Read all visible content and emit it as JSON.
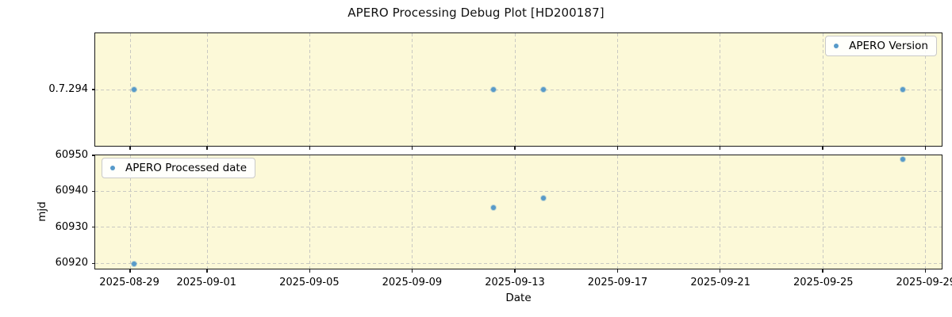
{
  "colors": {
    "plot_bg": "#fcf9d8",
    "marker": "#579ac9",
    "grid": "#c9c9c2",
    "axis": "#1a1a1a",
    "legend_bg": "rgba(255,255,255,0.88)",
    "legend_border": "#c9c9c9"
  },
  "chart_data": {
    "type": "scatter",
    "title": "APERO Processing Debug Plot [HD200187]",
    "grid": true,
    "marker": "dot",
    "x_axis": {
      "label": "Date",
      "min": "2025-08-27T15:20:00",
      "max": "2025-09-29T15:20:00",
      "ticks": [
        "2025-08-29",
        "2025-09-01",
        "2025-09-05",
        "2025-09-09",
        "2025-09-13",
        "2025-09-17",
        "2025-09-21",
        "2025-09-25",
        "2025-09-29"
      ]
    },
    "subplots": [
      {
        "name": "apero-version",
        "legend_label": "APERO Version",
        "legend_position": "upper right",
        "y_type": "category",
        "y_ticks": [
          "0.7.294"
        ],
        "points": [
          {
            "x": "2025-08-29T04:00:00",
            "y": "0.7.294"
          },
          {
            "x": "2025-09-12T04:00:00",
            "y": "0.7.294"
          },
          {
            "x": "2025-09-14T03:00:00",
            "y": "0.7.294"
          },
          {
            "x": "2025-09-28T03:00:00",
            "y": "0.7.294"
          }
        ]
      },
      {
        "name": "apero-processed-date",
        "legend_label": "APERO Processed date",
        "legend_position": "upper left",
        "y_type": "linear",
        "ylabel": "mjd",
        "ylim": [
          60918.5,
          60950
        ],
        "y_ticks": [
          60950,
          60940,
          60930,
          60920
        ],
        "points": [
          {
            "x": "2025-08-29T04:00:00",
            "y": 60919.9
          },
          {
            "x": "2025-09-12T04:00:00",
            "y": 60935.5
          },
          {
            "x": "2025-09-14T03:00:00",
            "y": 60938.0
          },
          {
            "x": "2025-09-28T03:00:00",
            "y": 60948.9
          }
        ]
      }
    ]
  }
}
